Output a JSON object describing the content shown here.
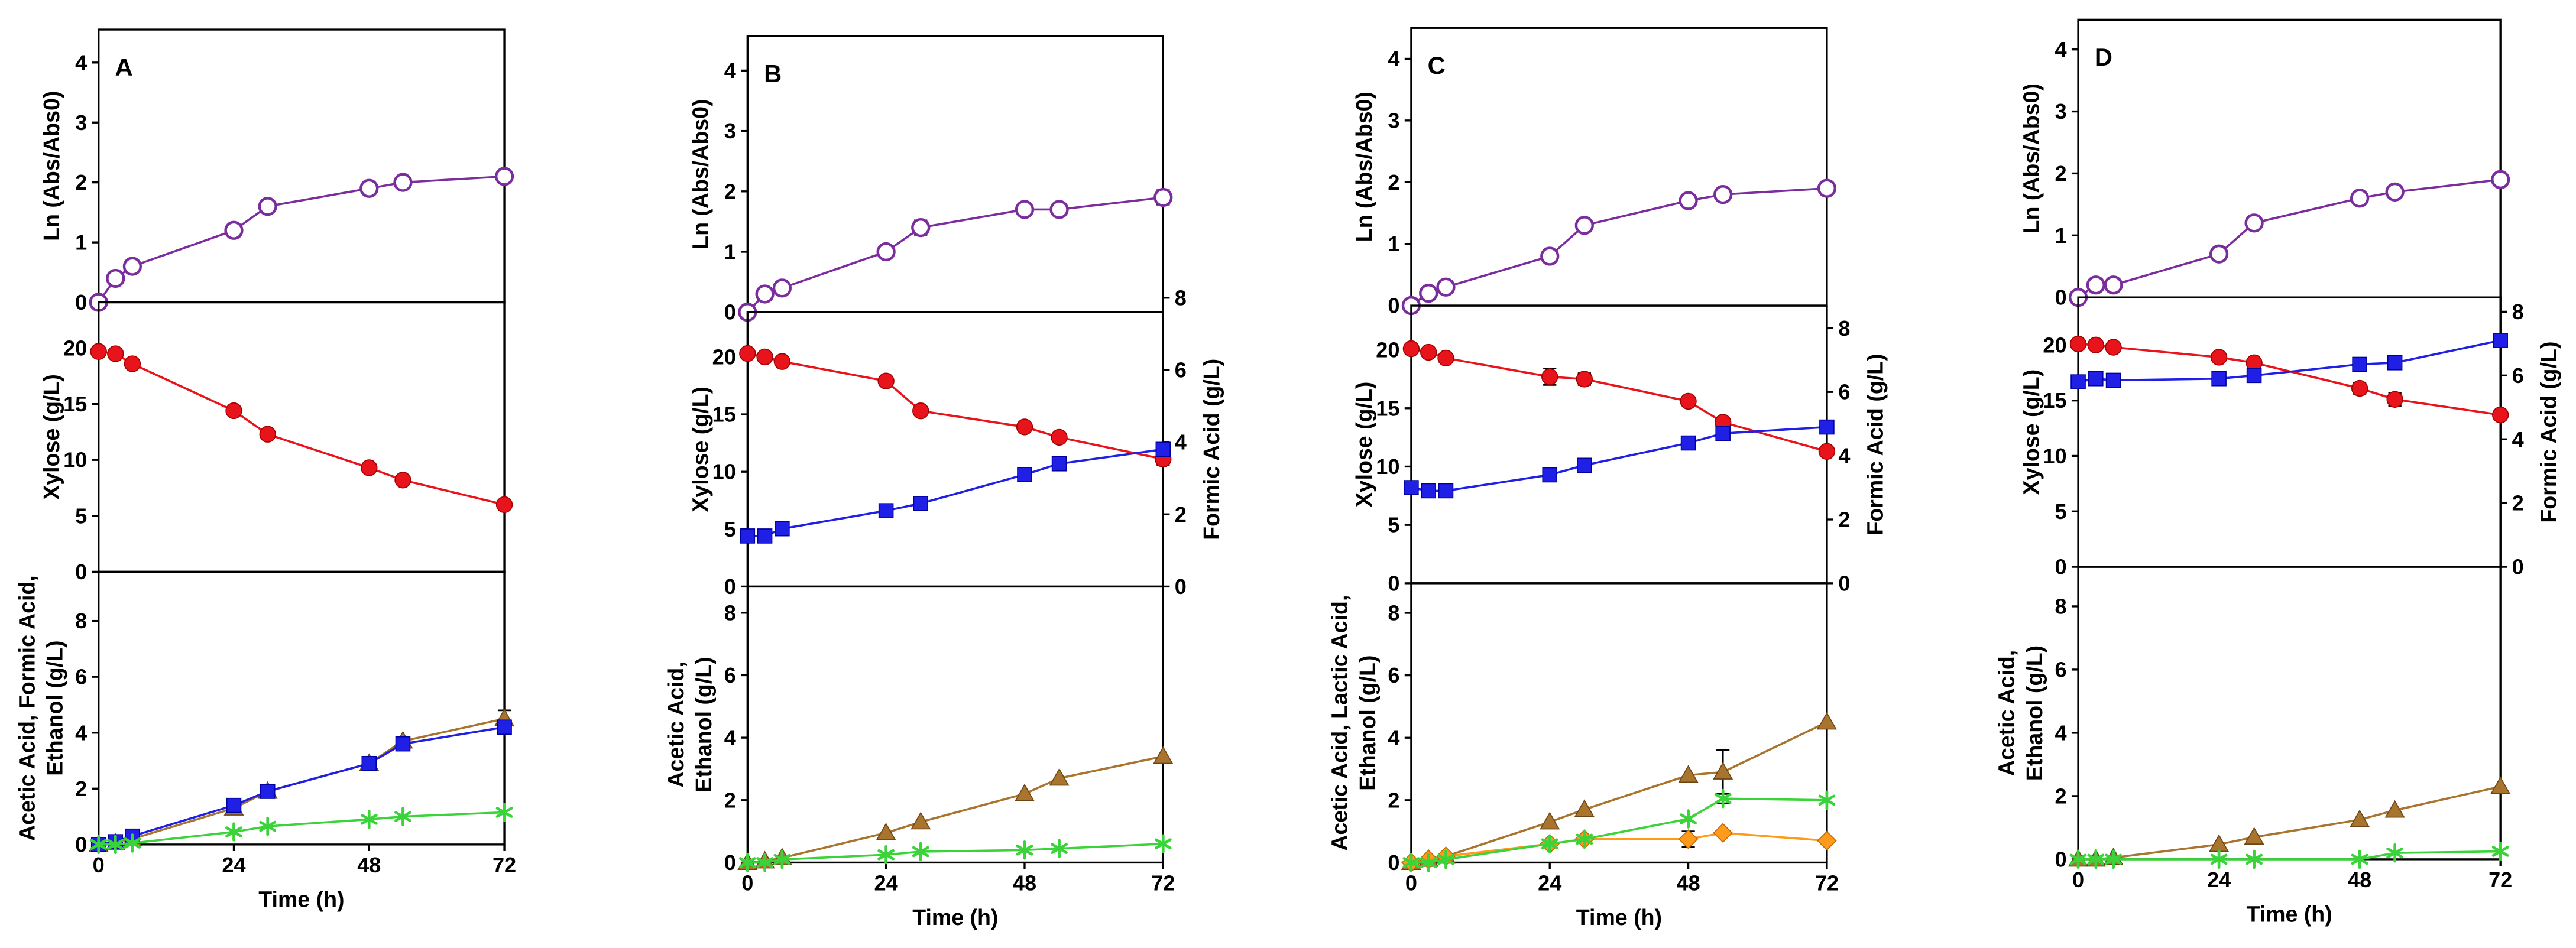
{
  "chart_data": [
    {
      "type": "line",
      "panel": "A",
      "xlabel": "Time (h)",
      "xlim": [
        0,
        72
      ],
      "xticks": [
        0,
        24,
        48,
        72
      ],
      "x": [
        0,
        3,
        6,
        24,
        30,
        48,
        54,
        72
      ],
      "subplots": [
        {
          "ylabel": [
            "Ln (Abs/Abs0)"
          ],
          "ylim": [
            0,
            4.55
          ],
          "yticks": [
            0,
            1,
            2,
            3,
            4
          ],
          "series": [
            {
              "name": "Ln (Abs/Abs0)",
              "marker": "open-circle",
              "color": "#7b2d9e",
              "axis": "left",
              "values": [
                0,
                0.4,
                0.6,
                1.2,
                1.6,
                1.9,
                2.0,
                2.1
              ],
              "errors": [
                0,
                0,
                0,
                0,
                0,
                0,
                0.08,
                0
              ]
            }
          ]
        },
        {
          "ylabel": [
            "Xylose (g/L)"
          ],
          "ylim": [
            0,
            24.1
          ],
          "yticks": [
            0,
            5,
            10,
            15,
            20
          ],
          "series": [
            {
              "name": "Xylose",
              "marker": "filled-circle",
              "color": "#e8141c",
              "axis": "left",
              "values": [
                19.7,
                19.5,
                18.6,
                14.4,
                12.3,
                9.3,
                8.2,
                6.0
              ],
              "errors": [
                0,
                0,
                0,
                0,
                0,
                0,
                0,
                0
              ]
            }
          ]
        },
        {
          "ylabel": [
            "Acetic Acid, Formic Acid,",
            "Ethanol (g/L)"
          ],
          "ylim": [
            0,
            9.76
          ],
          "yticks": [
            0,
            2,
            4,
            6,
            8
          ],
          "series": [
            {
              "name": "Acetic Acid",
              "marker": "triangle",
              "color": "#a8742e",
              "axis": "left",
              "values": [
                0,
                0.05,
                0.2,
                1.3,
                1.9,
                2.9,
                3.7,
                4.5
              ],
              "errors": [
                0,
                0,
                0,
                0.1,
                0.1,
                0.1,
                0.15,
                0.3
              ]
            },
            {
              "name": "Formic Acid",
              "marker": "square",
              "color": "#1f1fe6",
              "axis": "left",
              "values": [
                0,
                0.1,
                0.3,
                1.4,
                1.9,
                2.9,
                3.6,
                4.2
              ],
              "errors": [
                0,
                0,
                0,
                0,
                0.1,
                0.1,
                0.1,
                0.2
              ]
            },
            {
              "name": "Ethanol",
              "marker": "star",
              "color": "#3ad43a",
              "axis": "left",
              "values": [
                0,
                0,
                0.05,
                0.45,
                0.65,
                0.9,
                1.0,
                1.15
              ],
              "errors": [
                0,
                0,
                0,
                0,
                0,
                0,
                0,
                0
              ]
            }
          ]
        }
      ]
    },
    {
      "type": "line",
      "panel": "B",
      "xlabel": "Time (h)",
      "xlim": [
        0,
        72
      ],
      "xticks": [
        0,
        24,
        48,
        72
      ],
      "x": [
        0,
        3,
        6,
        24,
        30,
        48,
        54,
        72
      ],
      "subplots": [
        {
          "ylabel": [
            "Ln (Abs/Abs0)"
          ],
          "ylim": [
            0,
            4.57
          ],
          "yticks": [
            0,
            1,
            2,
            3,
            4
          ],
          "series": [
            {
              "name": "Ln (Abs/Abs0)",
              "marker": "open-circle",
              "color": "#7b2d9e",
              "axis": "left",
              "values": [
                0,
                0.3,
                0.4,
                1.0,
                1.4,
                1.7,
                1.7,
                1.9
              ],
              "errors": [
                0,
                0,
                0,
                0,
                0.12,
                0,
                0,
                0.12
              ]
            }
          ]
        },
        {
          "ylabel": [
            "Xylose (g/L)"
          ],
          "ylim": [
            0,
            23.9
          ],
          "yticks": [
            0,
            5,
            10,
            15,
            20
          ],
          "y2label": "Formic Acid (g/L)",
          "y2lim": [
            0,
            7.6
          ],
          "y2ticks": [
            0,
            2,
            4,
            6,
            8
          ],
          "series": [
            {
              "name": "Xylose",
              "marker": "filled-circle",
              "color": "#e8141c",
              "axis": "left",
              "values": [
                20.3,
                20.0,
                19.6,
                17.9,
                15.3,
                13.9,
                13.0,
                11.1
              ],
              "errors": [
                0,
                0,
                0,
                0,
                0,
                0,
                0,
                0.5
              ]
            },
            {
              "name": "Formic Acid",
              "marker": "square",
              "color": "#1f1fe6",
              "axis": "right",
              "values": [
                1.4,
                1.4,
                1.6,
                2.1,
                2.3,
                3.1,
                3.4,
                3.8
              ],
              "errors": [
                0,
                0,
                0,
                0,
                0,
                0,
                0,
                0
              ]
            }
          ]
        },
        {
          "ylabel": [
            "Acetic Acid,",
            "Ethanol (g/L)"
          ],
          "ylim": [
            0,
            8.84
          ],
          "yticks": [
            0,
            2,
            4,
            6,
            8
          ],
          "series": [
            {
              "name": "Acetic Acid",
              "marker": "triangle",
              "color": "#a8742e",
              "axis": "left",
              "values": [
                0,
                0.05,
                0.15,
                0.95,
                1.3,
                2.2,
                2.7,
                3.4
              ],
              "errors": [
                0,
                0,
                0,
                0,
                0,
                0,
                0,
                0
              ]
            },
            {
              "name": "Ethanol",
              "marker": "star",
              "color": "#3ad43a",
              "axis": "left",
              "values": [
                0,
                0,
                0.1,
                0.25,
                0.35,
                0.4,
                0.45,
                0.6
              ],
              "errors": [
                0,
                0,
                0,
                0,
                0,
                0,
                0,
                0
              ]
            }
          ]
        }
      ]
    },
    {
      "type": "line",
      "panel": "C",
      "xlabel": "Time (h)",
      "xlim": [
        0,
        72
      ],
      "xticks": [
        0,
        24,
        48,
        72
      ],
      "x": [
        0,
        3,
        6,
        24,
        30,
        48,
        54,
        72
      ],
      "subplots": [
        {
          "ylabel": [
            "Ln (Abs/Abs0)"
          ],
          "ylim": [
            0,
            4.5
          ],
          "yticks": [
            0,
            1,
            2,
            3,
            4
          ],
          "series": [
            {
              "name": "Ln (Abs/Abs0)",
              "marker": "open-circle",
              "color": "#7b2d9e",
              "axis": "left",
              "values": [
                0,
                0.2,
                0.3,
                0.8,
                1.3,
                1.7,
                1.8,
                1.9
              ],
              "errors": [
                0,
                0,
                0,
                0,
                0,
                0,
                0,
                0
              ]
            }
          ]
        },
        {
          "ylabel": [
            "Xylose (g/L)"
          ],
          "ylim": [
            0,
            23.8
          ],
          "yticks": [
            0,
            5,
            10,
            15,
            20
          ],
          "y2label": "Formic Acid (g/L)",
          "y2lim": [
            0,
            8.71
          ],
          "y2ticks": [
            0,
            2,
            4,
            6,
            8
          ],
          "series": [
            {
              "name": "Xylose",
              "marker": "filled-circle",
              "color": "#e8141c",
              "axis": "left",
              "values": [
                20.1,
                19.8,
                19.3,
                17.7,
                17.5,
                15.6,
                13.8,
                11.3
              ],
              "errors": [
                0,
                0,
                0,
                0.7,
                0.5,
                0,
                0,
                0
              ]
            },
            {
              "name": "Formic Acid",
              "marker": "square",
              "color": "#1f1fe6",
              "axis": "right",
              "values": [
                3.0,
                2.9,
                2.9,
                3.4,
                3.7,
                4.4,
                4.7,
                4.9
              ],
              "errors": [
                0,
                0,
                0,
                0,
                0,
                0,
                0,
                0
              ]
            }
          ]
        },
        {
          "ylabel": [
            "Acetic Acid, Lactic Acid,",
            "Ethanol (g/L)"
          ],
          "ylim": [
            0,
            8.95
          ],
          "yticks": [
            0,
            2,
            4,
            6,
            8
          ],
          "series": [
            {
              "name": "Acetic Acid",
              "marker": "triangle",
              "color": "#a8742e",
              "axis": "left",
              "values": [
                0,
                0.1,
                0.2,
                1.3,
                1.7,
                2.8,
                2.9,
                4.5
              ],
              "errors": [
                0,
                0,
                0,
                0,
                0,
                0,
                0.7,
                0
              ]
            },
            {
              "name": "Lactic Acid",
              "marker": "diamond",
              "color": "#ff9a1a",
              "axis": "left",
              "values": [
                0,
                0.1,
                0.2,
                0.6,
                0.75,
                0.75,
                0.95,
                0.7
              ],
              "errors": [
                0,
                0,
                0,
                0,
                0,
                0.25,
                0,
                0
              ]
            },
            {
              "name": "Ethanol",
              "marker": "star",
              "color": "#3ad43a",
              "axis": "left",
              "values": [
                0,
                0,
                0.1,
                0.6,
                0.75,
                1.4,
                2.05,
                2.0
              ],
              "errors": [
                0,
                0,
                0,
                0,
                0,
                0,
                0.15,
                0
              ]
            }
          ]
        }
      ]
    },
    {
      "type": "line",
      "panel": "D",
      "xlabel": "Time (h)",
      "xlim": [
        0,
        72
      ],
      "xticks": [
        0,
        24,
        48,
        72
      ],
      "x": [
        0,
        3,
        6,
        24,
        30,
        48,
        54,
        72
      ],
      "subplots": [
        {
          "ylabel": [
            "Ln (Abs/Abs0)"
          ],
          "ylim": [
            0,
            4.48
          ],
          "yticks": [
            0,
            1,
            2,
            3,
            4
          ],
          "series": [
            {
              "name": "Ln (Abs/Abs0)",
              "marker": "open-circle",
              "color": "#7b2d9e",
              "axis": "left",
              "values": [
                0,
                0.2,
                0.2,
                0.7,
                1.2,
                1.6,
                1.7,
                1.9
              ],
              "errors": [
                0,
                0,
                0,
                0,
                0,
                0,
                0,
                0
              ]
            }
          ]
        },
        {
          "ylabel": [
            "Xylose (g/L)"
          ],
          "ylim": [
            0,
            24.3
          ],
          "yticks": [
            0,
            5,
            10,
            15,
            20
          ],
          "y2label": "Formic Acid (g/L)",
          "y2lim": [
            0,
            8.45
          ],
          "y2ticks": [
            0,
            2,
            4,
            6,
            8
          ],
          "series": [
            {
              "name": "Xylose",
              "marker": "filled-circle",
              "color": "#e8141c",
              "axis": "left",
              "values": [
                20.1,
                20.0,
                19.8,
                18.9,
                18.4,
                16.1,
                15.1,
                13.7
              ],
              "errors": [
                0,
                0,
                0,
                0,
                0,
                0.5,
                0.6,
                0
              ]
            },
            {
              "name": "Formic Acid",
              "marker": "square",
              "color": "#1f1fe6",
              "axis": "right",
              "values": [
                5.8,
                5.9,
                5.85,
                5.9,
                6.0,
                6.35,
                6.4,
                7.1
              ],
              "errors": [
                0,
                0,
                0,
                0,
                0,
                0,
                0,
                0
              ]
            }
          ]
        },
        {
          "ylabel": [
            "Acetic Acid,",
            "Ethanol (g/L)"
          ],
          "ylim": [
            0,
            9.25
          ],
          "yticks": [
            0,
            2,
            4,
            6,
            8
          ],
          "series": [
            {
              "name": "Acetic Acid",
              "marker": "triangle",
              "color": "#a8742e",
              "axis": "left",
              "values": [
                0,
                0,
                0.05,
                0.47,
                0.7,
                1.25,
                1.55,
                2.3
              ],
              "errors": [
                0,
                0,
                0,
                0,
                0,
                0,
                0,
                0
              ]
            },
            {
              "name": "Ethanol",
              "marker": "star",
              "color": "#3ad43a",
              "axis": "left",
              "values": [
                0,
                0,
                0,
                0,
                0,
                0,
                0.2,
                0.25
              ],
              "errors": [
                0,
                0,
                0,
                0,
                0,
                0,
                0,
                0
              ]
            }
          ]
        }
      ]
    }
  ]
}
